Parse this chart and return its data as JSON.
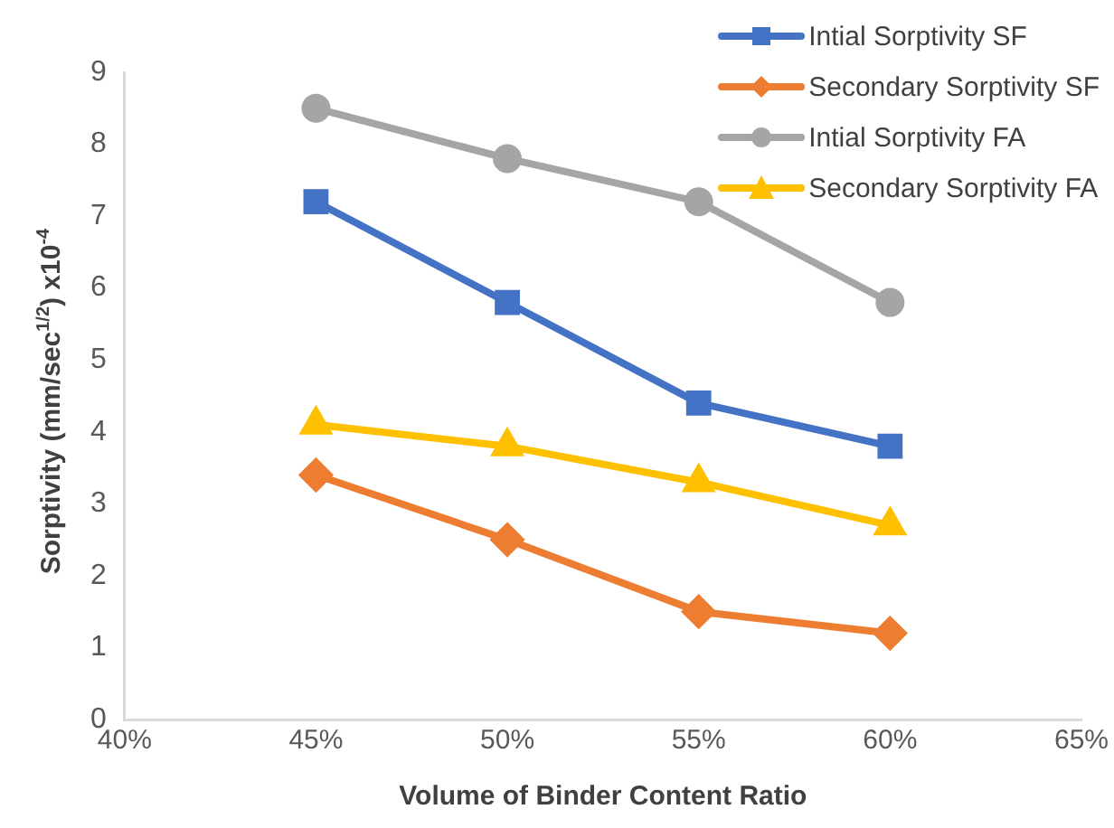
{
  "chart_data": {
    "type": "line",
    "xlabel": "Volume of Binder Content Ratio",
    "ylabel": "Sorptivity (mm/sec$^{1/2}$) x10$^{-4}$",
    "x": [
      45,
      50,
      55,
      60
    ],
    "xlim": [
      40,
      65
    ],
    "xticks": [
      {
        "value": 40,
        "label": "40%"
      },
      {
        "value": 45,
        "label": "45%"
      },
      {
        "value": 50,
        "label": "50%"
      },
      {
        "value": 55,
        "label": "55%"
      },
      {
        "value": 60,
        "label": "60%"
      },
      {
        "value": 65,
        "label": "65%"
      }
    ],
    "ylim": [
      0,
      9
    ],
    "yticks": [
      0,
      1,
      2,
      3,
      4,
      5,
      6,
      7,
      8,
      9
    ],
    "grid": false,
    "legend": "top right",
    "series": [
      {
        "name": "Intial Sorptivity SF",
        "color": "#4472c4",
        "marker": "square",
        "values": [
          7.2,
          5.8,
          4.4,
          3.8
        ]
      },
      {
        "name": "Secondary Sorptivity SF",
        "color": "#ed7d31",
        "marker": "diamond",
        "values": [
          3.4,
          2.5,
          1.5,
          1.2
        ]
      },
      {
        "name": "Intial Sorptivity FA",
        "color": "#a5a5a5",
        "marker": "circle",
        "values": [
          8.5,
          7.8,
          7.2,
          5.8
        ]
      },
      {
        "name": "Secondary Sorptivity FA",
        "color": "#ffc000",
        "marker": "triangle",
        "values": [
          4.1,
          3.8,
          3.3,
          2.7
        ]
      }
    ]
  }
}
